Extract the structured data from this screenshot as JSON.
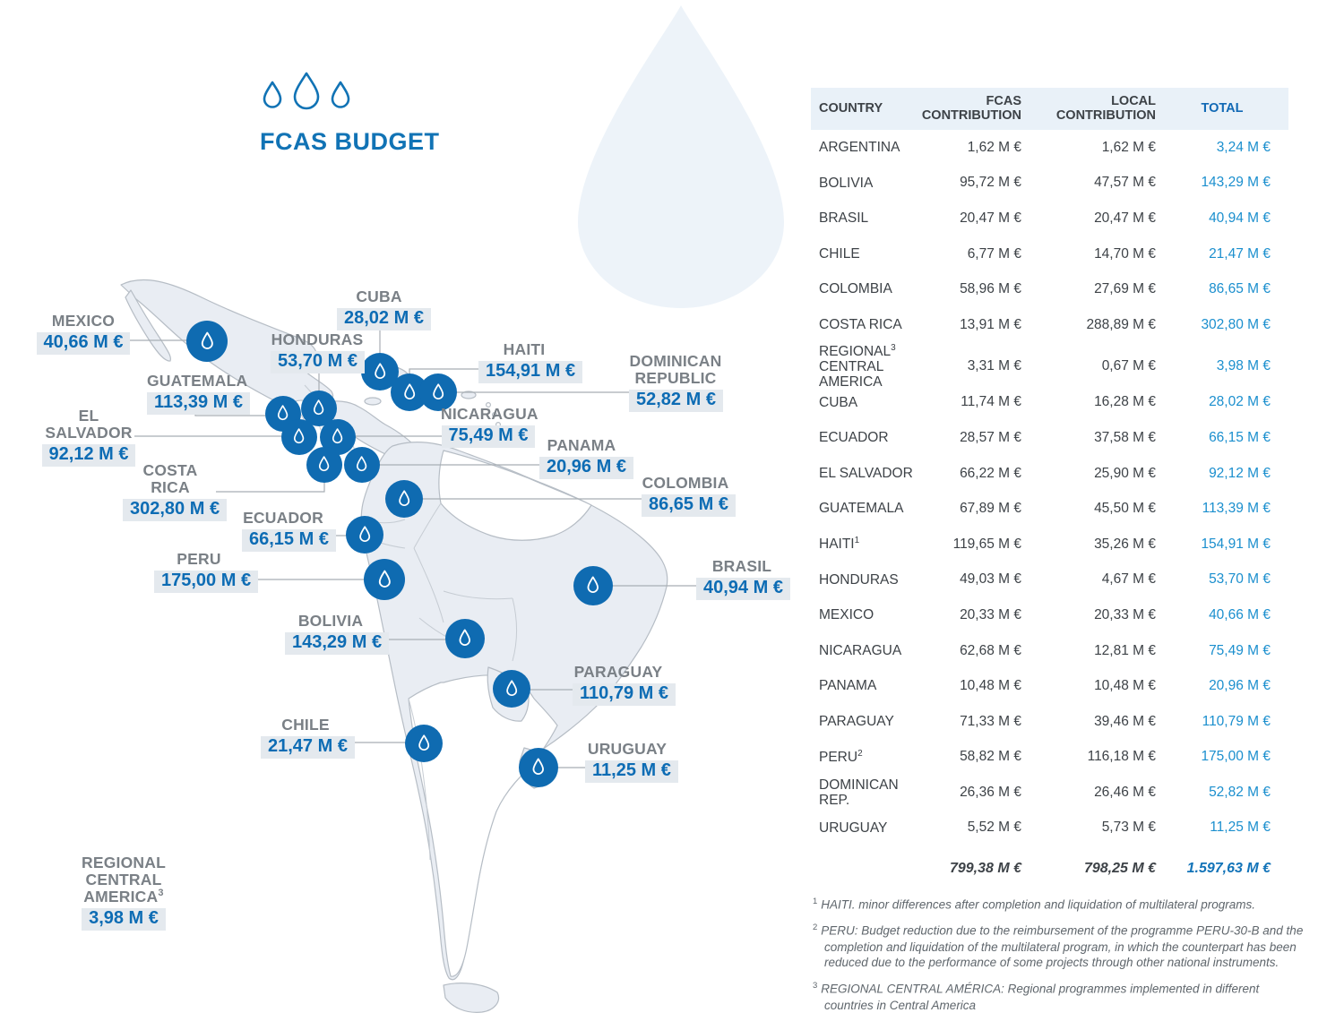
{
  "logo": {
    "title": "FCAS BUDGET",
    "icon": "water-drops-icon"
  },
  "map": {
    "marker_icon": "water-drop-icon",
    "labels": [
      {
        "id": "mexico",
        "name": "MEXICO",
        "value": "40,66 M €"
      },
      {
        "id": "cuba",
        "name": "CUBA",
        "value": "28,02 M €"
      },
      {
        "id": "honduras",
        "name": "HONDURAS",
        "value": "53,70 M €"
      },
      {
        "id": "guatemala",
        "name": "GUATEMALA",
        "value": "113,39 M €"
      },
      {
        "id": "el-salvador",
        "name": "EL SALVADOR",
        "value": "92,12 M €"
      },
      {
        "id": "costa-rica",
        "name": "COSTA RICA",
        "value": "302,80 M €"
      },
      {
        "id": "haiti",
        "name": "HAITI",
        "value": "154,91 M €"
      },
      {
        "id": "dominican-republic",
        "name": "DOMINICAN",
        "name2": "REPUBLIC",
        "value": "52,82 M €"
      },
      {
        "id": "nicaragua",
        "name": "NICARAGUA",
        "value": "75,49 M €"
      },
      {
        "id": "panama",
        "name": "PANAMA",
        "value": "20,96 M €"
      },
      {
        "id": "colombia",
        "name": "COLOMBIA",
        "value": "86,65 M €"
      },
      {
        "id": "ecuador",
        "name": "ECUADOR",
        "value": "66,15 M €"
      },
      {
        "id": "peru",
        "name": "PERU",
        "value": "175,00 M €"
      },
      {
        "id": "brasil",
        "name": "BRASIL",
        "value": "40,94 M €"
      },
      {
        "id": "bolivia",
        "name": "BOLIVIA",
        "value": "143,29 M €"
      },
      {
        "id": "paraguay",
        "name": "PARAGUAY",
        "value": "110,79 M €"
      },
      {
        "id": "chile",
        "name": "CHILE",
        "value": "21,47 M €"
      },
      {
        "id": "uruguay",
        "name": "URUGUAY",
        "value": "11,25 M €"
      },
      {
        "id": "regional-central-america",
        "name": "REGIONAL",
        "name2": "CENTRAL AMERICA",
        "sup": "3",
        "value": "3,98 M €"
      }
    ]
  },
  "table": {
    "headers": {
      "country": "COUNTRY",
      "fcas": "FCAS CONTRIBUTION",
      "local": "LOCAL CONTRIBUTION",
      "total": "TOTAL"
    },
    "rows": [
      {
        "country": "ARGENTINA",
        "fcas": "1,62 M €",
        "local": "1,62 M €",
        "total": "3,24 M €"
      },
      {
        "country": "BOLIVIA",
        "fcas": "95,72 M €",
        "local": "47,57 M €",
        "total": "143,29 M €"
      },
      {
        "country": "BRASIL",
        "fcas": "20,47 M €",
        "local": "20,47 M €",
        "total": "40,94 M €"
      },
      {
        "country": "CHILE",
        "fcas": "6,77 M €",
        "local": "14,70 M €",
        "total": "21,47 M €"
      },
      {
        "country": "COLOMBIA",
        "fcas": "58,96 M €",
        "local": "27,69 M €",
        "total": "86,65 M €"
      },
      {
        "country": "COSTA RICA",
        "fcas": "13,91 M €",
        "local": "288,89 M €",
        "total": "302,80 M €"
      },
      {
        "country": "REGIONAL",
        "sup": "3",
        "country2": "CENTRAL AMERICA",
        "fcas": "3,31 M €",
        "local": "0,67 M €",
        "total": "3,98 M €"
      },
      {
        "country": "CUBA",
        "fcas": "11,74 M €",
        "local": "16,28 M €",
        "total": "28,02 M €"
      },
      {
        "country": "ECUADOR",
        "fcas": "28,57 M €",
        "local": "37,58 M €",
        "total": "66,15 M €"
      },
      {
        "country": "EL SALVADOR",
        "fcas": "66,22 M €",
        "local": "25,90 M €",
        "total": "92,12 M €"
      },
      {
        "country": "GUATEMALA",
        "fcas": "67,89 M €",
        "local": "45,50 M €",
        "total": "113,39 M €"
      },
      {
        "country": "HAITI",
        "sup": "1",
        "fcas": "119,65 M €",
        "local": "35,26 M €",
        "total": "154,91 M €"
      },
      {
        "country": "HONDURAS",
        "fcas": "49,03 M €",
        "local": "4,67 M €",
        "total": "53,70 M €"
      },
      {
        "country": "MEXICO",
        "fcas": "20,33 M €",
        "local": "20,33 M €",
        "total": "40,66 M €"
      },
      {
        "country": "NICARAGUA",
        "fcas": "62,68 M €",
        "local": "12,81 M €",
        "total": "75,49 M €"
      },
      {
        "country": "PANAMA",
        "fcas": "10,48 M €",
        "local": "10,48 M €",
        "total": "20,96 M €"
      },
      {
        "country": "PARAGUAY",
        "fcas": "71,33 M €",
        "local": "39,46 M €",
        "total": "110,79 M €"
      },
      {
        "country": "PERU",
        "sup": "2",
        "fcas": "58,82 M €",
        "local": "116,18 M €",
        "total": "175,00 M €"
      },
      {
        "country": "DOMINICAN REP.",
        "fcas": "26,36 M €",
        "local": "26,46 M €",
        "total": "52,82 M €"
      },
      {
        "country": "URUGUAY",
        "fcas": "5,52 M €",
        "local": "5,73 M €",
        "total": "11,25 M €"
      }
    ],
    "totals": {
      "fcas": "799,38 M €",
      "local": "798,25 M €",
      "total": "1.597,63 M €"
    }
  },
  "footnotes": [
    {
      "sup": "1",
      "text": "HAITI. minor differences after completion and liquidation of multilateral programs."
    },
    {
      "sup": "2",
      "text": "PERU: Budget reduction due to the reimbursement of the programme PERU-30-B and the completion and liquidation of the multilateral program, in which the counterpart has been reduced due to the performance of some projects through other national instruments."
    },
    {
      "sup": "3",
      "text": "REGIONAL CENTRAL AMÉRICA: Regional programmes implemented in different countries in Central America"
    }
  ],
  "colors": {
    "primary_blue": "#1173b5",
    "marker_blue": "#0f6bb1",
    "total_blue": "#1b8fce",
    "header_total_blue": "#1169b5",
    "label_bg": "#e4e9ee",
    "header_bg": "#e9f1f8",
    "text_dark": "#3d4247",
    "text_gray": "#7a8086",
    "map_fill": "#e9edf3",
    "map_stroke": "#b6bdc5",
    "big_drop_fill": "#edf3f9",
    "footnote_gray": "#5f666c"
  },
  "chart_data": {
    "type": "table",
    "title": "FCAS BUDGET",
    "categories": [
      "ARGENTINA",
      "BOLIVIA",
      "BRASIL",
      "CHILE",
      "COLOMBIA",
      "COSTA RICA",
      "REGIONAL CENTRAL AMERICA",
      "CUBA",
      "ECUADOR",
      "EL SALVADOR",
      "GUATEMALA",
      "HAITI",
      "HONDURAS",
      "MEXICO",
      "NICARAGUA",
      "PANAMA",
      "PARAGUAY",
      "PERU",
      "DOMINICAN REP.",
      "URUGUAY"
    ],
    "series": [
      {
        "name": "FCAS CONTRIBUTION (M €)",
        "values": [
          1.62,
          95.72,
          20.47,
          6.77,
          58.96,
          13.91,
          3.31,
          11.74,
          28.57,
          66.22,
          67.89,
          119.65,
          49.03,
          20.33,
          62.68,
          10.48,
          71.33,
          58.82,
          26.36,
          5.52
        ]
      },
      {
        "name": "LOCAL CONTRIBUTION (M €)",
        "values": [
          1.62,
          47.57,
          20.47,
          14.7,
          27.69,
          288.89,
          0.67,
          16.28,
          37.58,
          25.9,
          45.5,
          35.26,
          4.67,
          20.33,
          12.81,
          10.48,
          39.46,
          116.18,
          26.46,
          5.73
        ]
      },
      {
        "name": "TOTAL (M €)",
        "values": [
          3.24,
          143.29,
          40.94,
          21.47,
          86.65,
          302.8,
          3.98,
          28.02,
          66.15,
          92.12,
          113.39,
          154.91,
          53.7,
          40.66,
          75.49,
          20.96,
          110.79,
          175.0,
          52.82,
          11.25
        ]
      }
    ],
    "totals": {
      "fcas": 799.38,
      "local": 798.25,
      "total": 1597.63
    }
  }
}
